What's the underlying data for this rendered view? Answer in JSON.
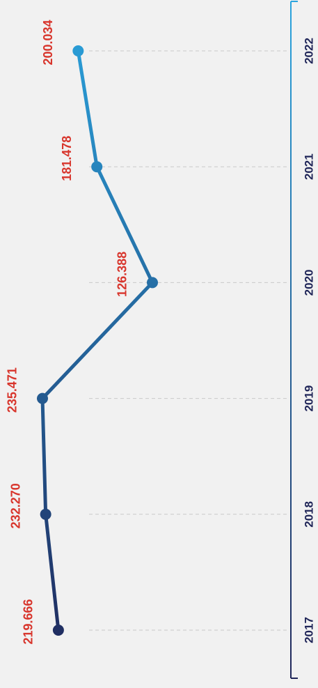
{
  "chart_data": {
    "type": "line",
    "categories": [
      "2017",
      "2018",
      "2019",
      "2020",
      "2021",
      "2022"
    ],
    "series": [
      {
        "values": [
          219.666,
          232.27,
          235.471,
          126.388,
          181.478,
          200.034
        ],
        "value_labels": [
          "219.666",
          "232.270",
          "235.471",
          "126.388",
          "181.478",
          "200.034"
        ],
        "colors": [
          "#1f2558",
          "#2aa4de"
        ]
      }
    ],
    "label_color": "#d8352c",
    "grid": true
  }
}
